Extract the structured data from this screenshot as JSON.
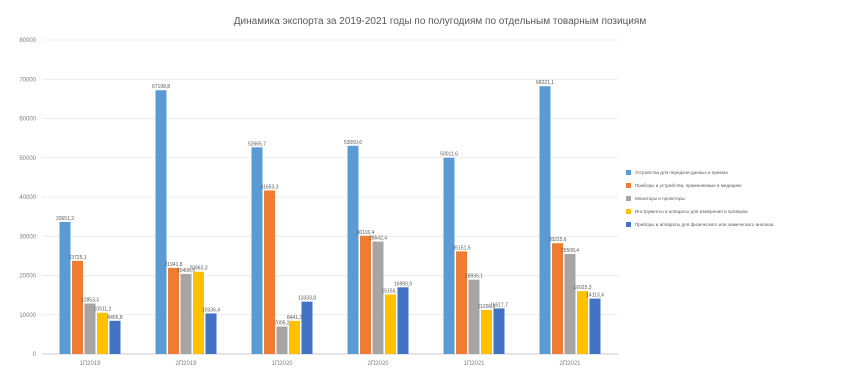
{
  "chart_data": {
    "type": "bar",
    "title": "Динамика экспорта за 2019-2021 годы по полугодиям по отдельным товарным позициям",
    "xlabel": "",
    "ylabel": "",
    "categories": [
      "1П2019",
      "2П2019",
      "1П2020",
      "2П2020",
      "1П2021",
      "2П2021"
    ],
    "yticks": [
      "0",
      "10000",
      "20000",
      "30000",
      "40000",
      "50000",
      "60000",
      "70000",
      "80000"
    ],
    "ylim": [
      0,
      80000
    ],
    "grid": true,
    "legend_position": "right",
    "series": [
      {
        "name": "Устройства для передачи данных и приема",
        "color": "#5b9bd5",
        "values": [
          33651.2,
          67198.8,
          52665.7,
          53050.6,
          50011.6,
          68221.1
        ],
        "labels": [
          "33651,2",
          "67198,8",
          "52665,7",
          "53050,6",
          "50011,6",
          "68221,1"
        ]
      },
      {
        "name": "Приборы и устройства, применяемые в медицине",
        "color": "#ed7d31",
        "values": [
          23725.1,
          21941.8,
          41653.3,
          30116.4,
          26151.5,
          28225.6
        ],
        "labels": [
          "23725,1",
          "21941,8",
          "41653,3",
          "30116,4",
          "26151,5",
          "28225,6"
        ]
      },
      {
        "name": "Мониторы и проекторы",
        "color": "#a5a5a5",
        "values": [
          12853.3,
          20406.5,
          7005.2,
          28642.4,
          18936.1,
          25508.4
        ],
        "labels": [
          "12853,3",
          "20406,5",
          "7005,2",
          "28642,4",
          "18936,1",
          "25508,4"
        ]
      },
      {
        "name": "Инструменты и аппараты для измерения и проверки",
        "color": "#ffc000",
        "values": [
          10511.2,
          20963.3,
          8441.3,
          15156.7,
          11206.5,
          16025.3
        ],
        "labels": [
          "10511,2",
          "20963,3",
          "8441,3",
          "15156,7",
          "11206,5",
          "16025,3"
        ]
      },
      {
        "name": "Приборы и аппараты для физического или химического анализа",
        "color": "#4472c4",
        "values": [
          8455.8,
          10336.4,
          13333.8,
          16990.9,
          11617.7,
          14113.4
        ],
        "labels": [
          "8455,8",
          "10336,4",
          "13333,8",
          "16990,9",
          "11617,7",
          "14113,4"
        ]
      }
    ]
  }
}
